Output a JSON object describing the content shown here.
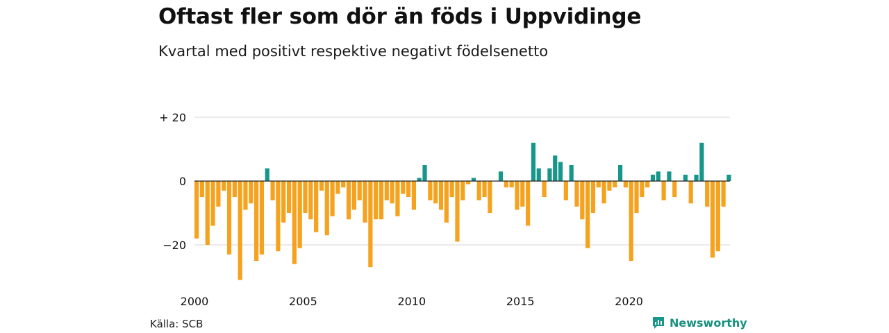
{
  "colors": {
    "positive": "#17978a",
    "negative": "#f5a31e",
    "grid": "#d6d6d6",
    "zero_line": "#222222"
  },
  "chart_data": {
    "type": "bar",
    "title": "Oftast fler som dör än föds i Uppvidinge",
    "subtitle": "Kvartal med positivt respektive negativt födelsenetto",
    "xlabel": "",
    "ylabel": "",
    "x_start": 2000.0,
    "x_step": 0.25,
    "x_ticks": [
      "2000",
      "2005",
      "2010",
      "2015",
      "2020"
    ],
    "y_ticks": [
      "+ 20",
      "0",
      "−20"
    ],
    "y_tick_values": [
      20,
      0,
      -20
    ],
    "ylim": [
      -31,
      20
    ],
    "grid": true,
    "values": [
      -18,
      -5,
      -20,
      -14,
      -8,
      -3,
      -23,
      -5,
      -31,
      -9,
      -7,
      -25,
      -23,
      4,
      -6,
      -22,
      -13,
      -10,
      -26,
      -21,
      -10,
      -12,
      -16,
      -3,
      -17,
      -11,
      -4,
      -2,
      -12,
      -9,
      -6,
      -13,
      -27,
      -12,
      -12,
      -6,
      -7,
      -11,
      -4,
      -5,
      -9,
      1,
      5,
      -6,
      -7,
      -9,
      -13,
      -5,
      -19,
      -6,
      -1,
      1,
      -6,
      -5,
      -10,
      0,
      3,
      -2,
      -2,
      -9,
      -8,
      -14,
      12,
      4,
      -5,
      4,
      8,
      6,
      -6,
      5,
      -8,
      -12,
      -21,
      -10,
      -2,
      -7,
      -3,
      -2,
      5,
      -2,
      -25,
      -10,
      -5,
      -2,
      2,
      3,
      -6,
      3,
      -5,
      0,
      2,
      -7,
      2,
      12,
      -8,
      -24,
      -22,
      -8,
      2
    ]
  },
  "footer": {
    "source": "Källa: SCB",
    "brand": "Newsworthy"
  }
}
